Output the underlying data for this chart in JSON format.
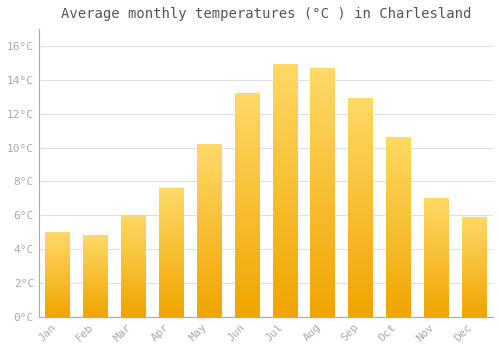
{
  "title": "Average monthly temperatures (°C ) in Charlesland",
  "months": [
    "Jan",
    "Feb",
    "Mar",
    "Apr",
    "May",
    "Jun",
    "Jul",
    "Aug",
    "Sep",
    "Oct",
    "Nov",
    "Dec"
  ],
  "values": [
    5.0,
    4.8,
    6.0,
    7.6,
    10.2,
    13.2,
    14.9,
    14.7,
    12.9,
    10.6,
    7.0,
    5.9
  ],
  "bar_color_light": "#FFD966",
  "bar_color_dark": "#F0A500",
  "background_color": "#FFFFFF",
  "grid_color": "#E0E0E0",
  "ylim": [
    0,
    17
  ],
  "yticks": [
    0,
    2,
    4,
    6,
    8,
    10,
    12,
    14,
    16
  ],
  "title_fontsize": 10,
  "tick_fontsize": 8,
  "tick_color": "#AAAAAA",
  "title_color": "#555555",
  "bar_width": 0.65
}
